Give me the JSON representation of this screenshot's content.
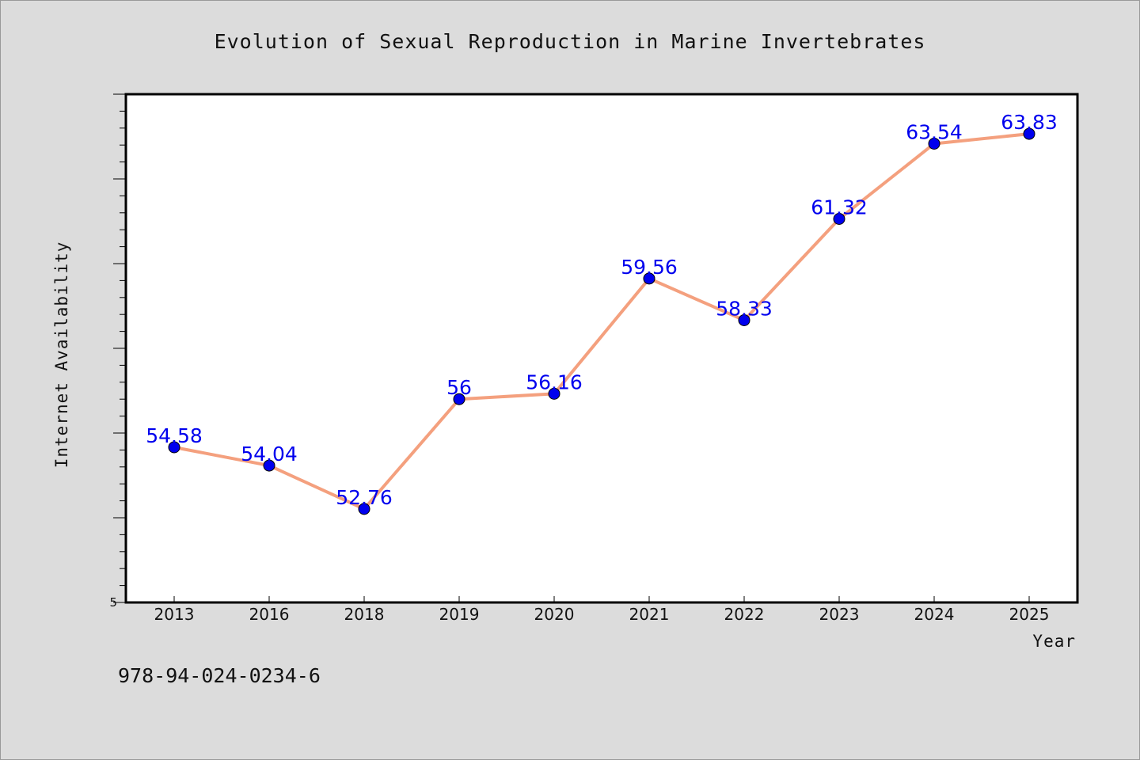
{
  "chart_data": {
    "type": "line",
    "title": "Evolution of Sexual Reproduction in Marine Invertebrates",
    "xlabel": "Year",
    "ylabel": "Internet Availability",
    "categories": [
      "2013",
      "2016",
      "2018",
      "2019",
      "2020",
      "2021",
      "2022",
      "2023",
      "2024",
      "2025"
    ],
    "series": [
      {
        "values": [
          54.58,
          54.04,
          52.76,
          56,
          56.16,
          59.56,
          58.33,
          61.32,
          63.54,
          63.83
        ]
      }
    ],
    "data_labels": [
      "54.58",
      "54.04",
      "52.76",
      "56",
      "56.16",
      "59.56",
      "58.33",
      "61.32",
      "63.54",
      "63.83"
    ],
    "y_tick_labels": [
      "5"
    ],
    "ylim": [
      50,
      65
    ],
    "grid": false,
    "legend": "none",
    "colors": {
      "line": "#f4a07e",
      "marker": "#0000ee",
      "data_label": "#0000ee",
      "background": "#dcdcdc",
      "plot_background": "#ffffff"
    }
  },
  "footer": {
    "isbn": "978-94-024-0234-6"
  }
}
